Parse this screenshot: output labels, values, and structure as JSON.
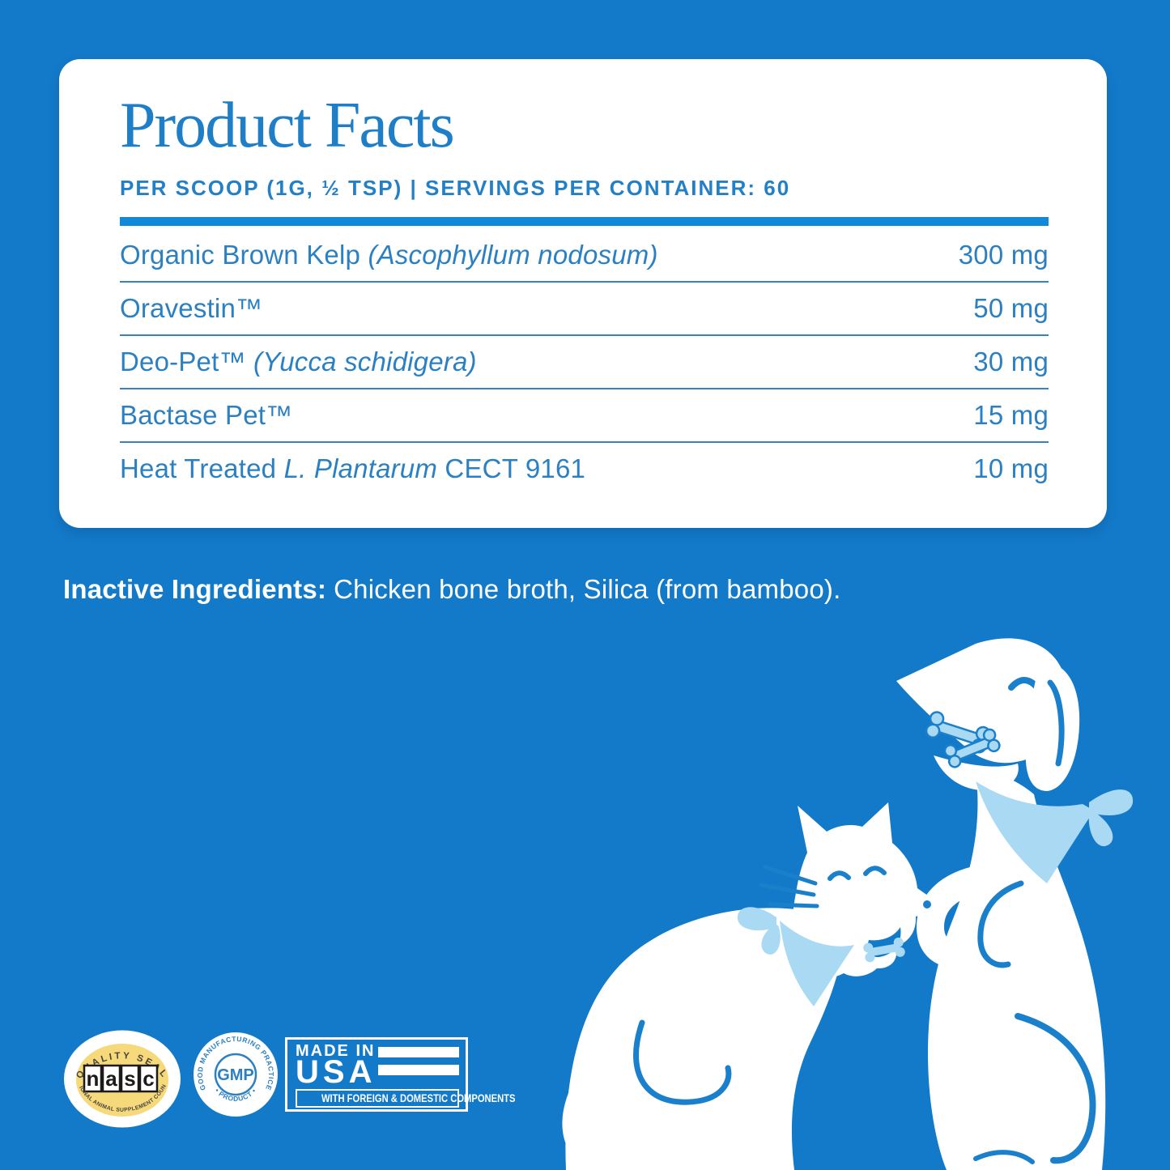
{
  "colors": {
    "background": "#137ac9",
    "panel": "#ffffff",
    "text_blue": "#2b80c3",
    "title_blue": "#1e7ec8",
    "rule_blue": "#0f89d8",
    "light_blue": "#aadaf3",
    "nasc_yellow": "#f6d97b"
  },
  "panel": {
    "title": "Product Facts",
    "serving_line": "PER SCOOP (1G, ½ TSP)  |  SERVINGS PER CONTAINER: 60",
    "ingredients": [
      {
        "segments": [
          {
            "text": "Organic Brown Kelp ",
            "italic": false
          },
          {
            "text": "(Ascophyllum nodosum)",
            "italic": true
          }
        ],
        "amount": "300 mg"
      },
      {
        "segments": [
          {
            "text": "Oravestin™",
            "italic": false
          }
        ],
        "amount": "50 mg"
      },
      {
        "segments": [
          {
            "text": "Deo-Pet™ ",
            "italic": false
          },
          {
            "text": "(Yucca schidigera)",
            "italic": true
          }
        ],
        "amount": "30 mg"
      },
      {
        "segments": [
          {
            "text": "Bactase Pet™",
            "italic": false
          }
        ],
        "amount": "15 mg"
      },
      {
        "segments": [
          {
            "text": "Heat Treated ",
            "italic": false
          },
          {
            "text": "L. Plantarum",
            "italic": true
          },
          {
            "text": " CECT 9161",
            "italic": false
          }
        ],
        "amount": "10 mg"
      }
    ]
  },
  "inactive_ingredients": {
    "label": "Inactive Ingredients:",
    "value": "Chicken bone broth, Silica (from bamboo)."
  },
  "badges": {
    "nasc": {
      "top_text": "QUALITY SEAL",
      "logo": "nasc",
      "bottom_text": "NATIONAL ANIMAL SUPPLEMENT COUNCIL"
    },
    "gmp": {
      "arc_text": "GOOD MANUFACTURING PRACTICE",
      "bottom_arc_text": "• PRODUCT •",
      "center_text": "GMP"
    },
    "made_in_usa": {
      "line1": "MADE IN",
      "line2": "USA",
      "subtext": "WITH FOREIGN & DOMESTIC COMPONENTS"
    }
  }
}
